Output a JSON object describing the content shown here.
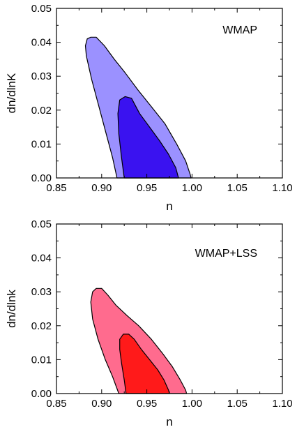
{
  "chart_data": [
    {
      "type": "area",
      "annotation": "WMAP",
      "xlabel": "n",
      "ylabel": "dn/dlnK",
      "xlim": [
        0.85,
        1.1
      ],
      "ylim": [
        0.0,
        0.05
      ],
      "xticks": [
        "0.85",
        "0.90",
        "0.95",
        "1.00",
        "1.05",
        "1.10"
      ],
      "yticks": [
        "0.00",
        "0.01",
        "0.02",
        "0.03",
        "0.04",
        "0.05"
      ],
      "grid": false,
      "series": [
        {
          "level": "outer",
          "color": "#9b91ff",
          "points": [
            [
              0.917,
              0.0
            ],
            [
              0.912,
              0.006
            ],
            [
              0.905,
              0.013
            ],
            [
              0.897,
              0.021
            ],
            [
              0.889,
              0.029
            ],
            [
              0.883,
              0.036
            ],
            [
              0.882,
              0.039
            ],
            [
              0.884,
              0.041
            ],
            [
              0.888,
              0.0415
            ],
            [
              0.894,
              0.0415
            ],
            [
              0.903,
              0.039
            ],
            [
              0.914,
              0.035
            ],
            [
              0.926,
              0.031
            ],
            [
              0.94,
              0.026
            ],
            [
              0.955,
              0.021
            ],
            [
              0.97,
              0.016
            ],
            [
              0.983,
              0.01
            ],
            [
              0.993,
              0.005
            ],
            [
              0.998,
              0.001
            ],
            [
              0.999,
              0.0
            ]
          ]
        },
        {
          "level": "inner",
          "color": "#3a12f0",
          "points": [
            [
              0.925,
              0.0
            ],
            [
              0.922,
              0.006
            ],
            [
              0.919,
              0.013
            ],
            [
              0.918,
              0.019
            ],
            [
              0.92,
              0.023
            ],
            [
              0.926,
              0.024
            ],
            [
              0.933,
              0.0235
            ],
            [
              0.942,
              0.019
            ],
            [
              0.953,
              0.015
            ],
            [
              0.964,
              0.011
            ],
            [
              0.974,
              0.007
            ],
            [
              0.982,
              0.003
            ],
            [
              0.985,
              0.0
            ]
          ]
        }
      ]
    },
    {
      "type": "area",
      "annotation": "WMAP+LSS",
      "xlabel": "n",
      "ylabel": "dn/dlnk",
      "xlim": [
        0.85,
        1.1
      ],
      "ylim": [
        0.0,
        0.05
      ],
      "xticks": [
        "0.85",
        "0.90",
        "0.95",
        "1.00",
        "1.05",
        "1.10"
      ],
      "yticks": [
        "0.00",
        "0.01",
        "0.02",
        "0.03",
        "0.04",
        "0.05"
      ],
      "grid": false,
      "series": [
        {
          "level": "outer",
          "color": "#ff6b8e",
          "points": [
            [
              0.919,
              0.0
            ],
            [
              0.912,
              0.005
            ],
            [
              0.904,
              0.01
            ],
            [
              0.896,
              0.016
            ],
            [
              0.89,
              0.022
            ],
            [
              0.888,
              0.027
            ],
            [
              0.89,
              0.03
            ],
            [
              0.894,
              0.031
            ],
            [
              0.9,
              0.031
            ],
            [
              0.907,
              0.029
            ],
            [
              0.916,
              0.026
            ],
            [
              0.928,
              0.023
            ],
            [
              0.941,
              0.02
            ],
            [
              0.955,
              0.016
            ],
            [
              0.967,
              0.012
            ],
            [
              0.978,
              0.008
            ],
            [
              0.987,
              0.004
            ],
            [
              0.993,
              0.001
            ],
            [
              0.994,
              0.0
            ]
          ]
        },
        {
          "level": "inner",
          "color": "#ff1a1a",
          "points": [
            [
              0.927,
              0.0
            ],
            [
              0.925,
              0.004
            ],
            [
              0.922,
              0.009
            ],
            [
              0.92,
              0.013
            ],
            [
              0.92,
              0.016
            ],
            [
              0.924,
              0.0175
            ],
            [
              0.93,
              0.0175
            ],
            [
              0.936,
              0.016
            ],
            [
              0.944,
              0.013
            ],
            [
              0.953,
              0.01
            ],
            [
              0.962,
              0.007
            ],
            [
              0.969,
              0.004
            ],
            [
              0.974,
              0.001
            ],
            [
              0.975,
              0.0
            ]
          ]
        }
      ]
    }
  ]
}
